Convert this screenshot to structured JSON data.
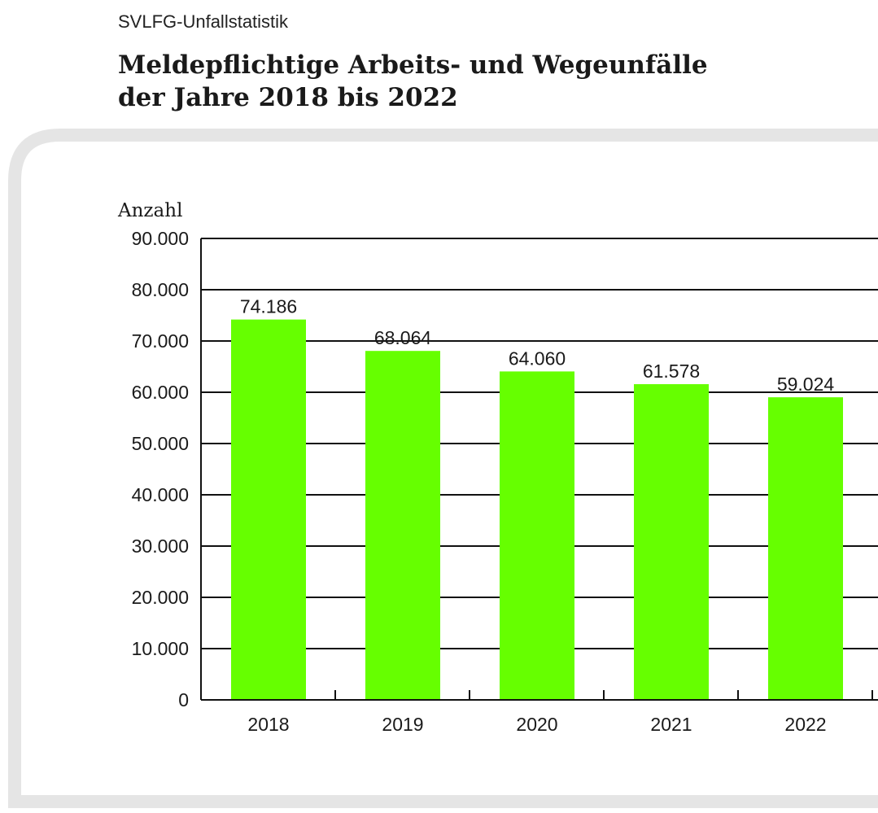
{
  "overline": "SVLFG-Unfallstatistik",
  "title_lines": [
    "Meldepflichtige Arbeits- und Wegeunfälle",
    "der Jahre 2018 bis 2022"
  ],
  "colors": {
    "bar": "#66ff00",
    "panel_border": "#e5e5e5",
    "grid": "#111111"
  },
  "chart_data": {
    "type": "bar",
    "title": "Meldepflichtige Arbeits- und Wegeunfälle der Jahre 2018 bis 2022",
    "categories": [
      "2018",
      "2019",
      "2020",
      "2021",
      "2022"
    ],
    "values": [
      74186,
      68064,
      64060,
      61578,
      59024
    ],
    "value_labels": [
      "74.186",
      "68.064",
      "64.060",
      "61.578",
      "59.024"
    ],
    "ylabel": "Anzahl",
    "xlabel": "",
    "ylim": [
      0,
      90000
    ],
    "yticks": [
      0,
      10000,
      20000,
      30000,
      40000,
      50000,
      60000,
      70000,
      80000,
      90000
    ],
    "ytick_labels": [
      "0",
      "10.000",
      "20.000",
      "30.000",
      "40.000",
      "50.000",
      "60.000",
      "70.000",
      "80.000",
      "90.000"
    ],
    "grid": true,
    "legend": "none"
  }
}
